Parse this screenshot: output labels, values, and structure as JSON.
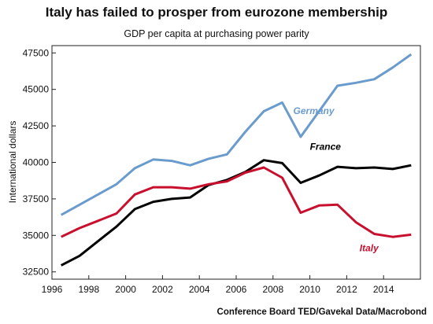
{
  "title": "Italy has failed to prosper from eurozone membership",
  "subtitle": "GDP per capita at purchasing power parity",
  "source": "Conference Board TED/Gavekal Data/Macrobond",
  "chart_data": {
    "type": "line",
    "title": "Italy has failed to prosper from eurozone membership",
    "subtitle": "GDP per capita at purchasing power parity",
    "xlabel": "",
    "ylabel": "International dollars",
    "xlim": [
      1996,
      2016
    ],
    "ylim": [
      32000,
      48000
    ],
    "x_ticks": [
      "1996",
      "1998",
      "2000",
      "2002",
      "2004",
      "2006",
      "2008",
      "2010",
      "2012",
      "2014"
    ],
    "y_ticks": [
      "32500",
      "35000",
      "37500",
      "40000",
      "42500",
      "45000",
      "47500"
    ],
    "grid": false,
    "x": [
      1996.5,
      1997.5,
      1998.5,
      1999.5,
      2000.5,
      2001.5,
      2002.5,
      2003.5,
      2004.5,
      2005.5,
      2006.5,
      2007.5,
      2008.5,
      2009.5,
      2010.5,
      2011.5,
      2012.5,
      2013.5,
      2014.5,
      2015.5
    ],
    "series": [
      {
        "name": "Germany",
        "color": "#6a9bcd",
        "values": [
          36400,
          37100,
          37800,
          38500,
          39600,
          40200,
          40100,
          39800,
          40250,
          40550,
          42100,
          43500,
          44100,
          41750,
          43500,
          45250,
          45450,
          45700,
          46500,
          47400
        ]
      },
      {
        "name": "France",
        "color": "#000000",
        "values": [
          32950,
          33600,
          34600,
          35600,
          36800,
          37300,
          37500,
          37600,
          38450,
          38800,
          39350,
          40150,
          39950,
          38600,
          39100,
          39700,
          39600,
          39650,
          39550,
          39800
        ]
      },
      {
        "name": "Italy",
        "color": "#c8102e",
        "values": [
          34900,
          35500,
          36000,
          36500,
          37800,
          38300,
          38300,
          38200,
          38500,
          38700,
          39300,
          39650,
          38950,
          36550,
          37050,
          37100,
          35900,
          35100,
          34900,
          35050
        ]
      }
    ],
    "label_positions": {
      "Germany": [
        2009.1,
        43300
      ],
      "France": [
        2010.0,
        40850
      ],
      "Italy": [
        2012.7,
        33900
      ]
    }
  }
}
